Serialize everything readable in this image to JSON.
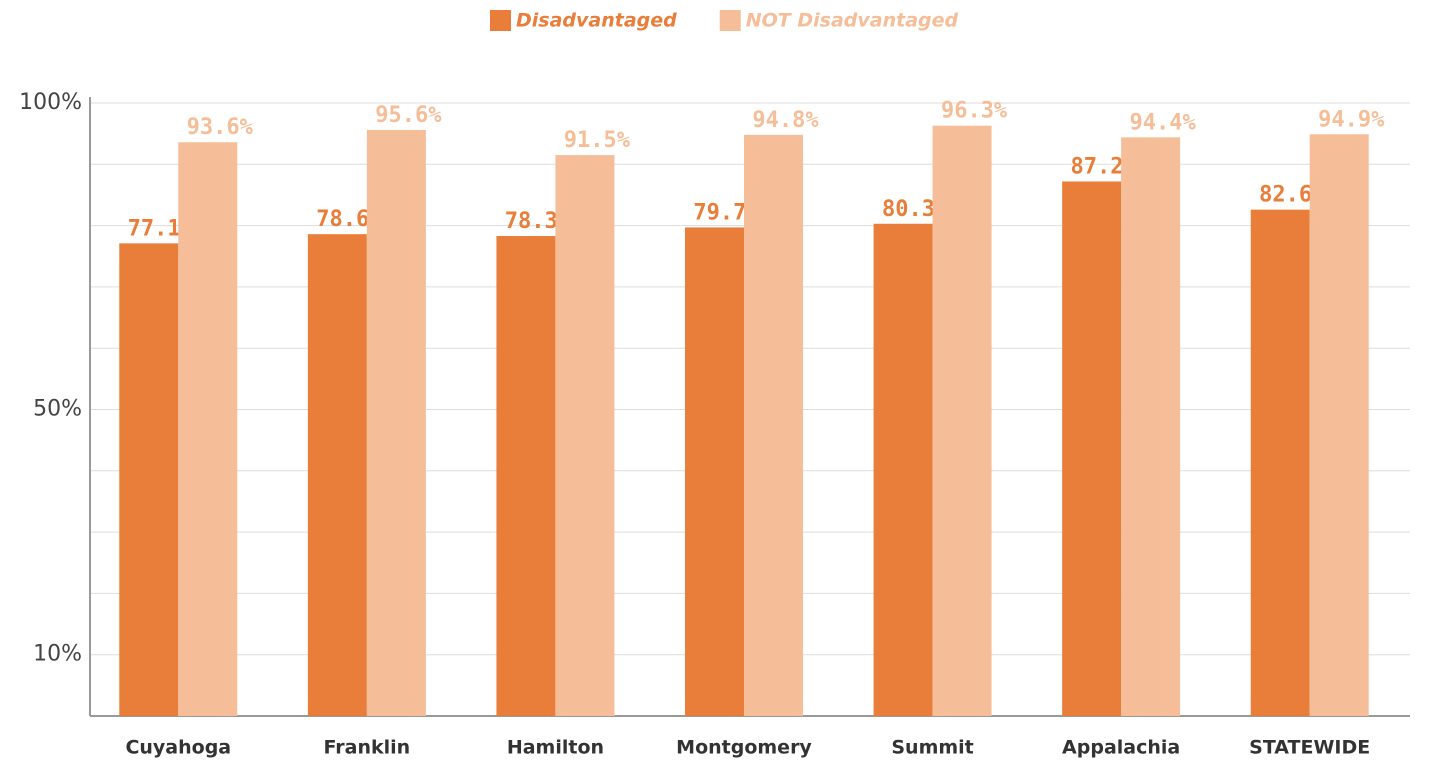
{
  "chart_data": {
    "type": "bar",
    "categories": [
      "Cuyahoga",
      "Franklin",
      "Hamilton",
      "Montgomery",
      "Summit",
      "Appalachia",
      "STATEWIDE"
    ],
    "series": [
      {
        "name": "Disadvantaged",
        "color": "#e87e3a",
        "values": [
          77.1,
          78.6,
          78.3,
          79.7,
          80.3,
          87.2,
          82.6
        ],
        "value_labels": [
          "77.1%",
          "78.6%",
          "78.3%",
          "79.7%",
          "80.3%",
          "87.2%",
          "82.6%"
        ]
      },
      {
        "name": "NOT Disadvantaged",
        "color": "#f5be98",
        "values": [
          93.6,
          95.6,
          91.5,
          94.8,
          96.3,
          94.4,
          94.9
        ],
        "value_labels": [
          "93.6%",
          "95.6%",
          "91.5%",
          "94.8%",
          "96.3%",
          "94.4%",
          "94.9%"
        ]
      }
    ],
    "ylim": [
      0,
      100
    ],
    "yticks": [
      {
        "value": 10,
        "label": "10%"
      },
      {
        "value": 50,
        "label": "50%"
      },
      {
        "value": 100,
        "label": "100%"
      }
    ],
    "minor_yticks": [
      20,
      30,
      40,
      60,
      70,
      80,
      90
    ],
    "grid": true,
    "legend": "top"
  }
}
